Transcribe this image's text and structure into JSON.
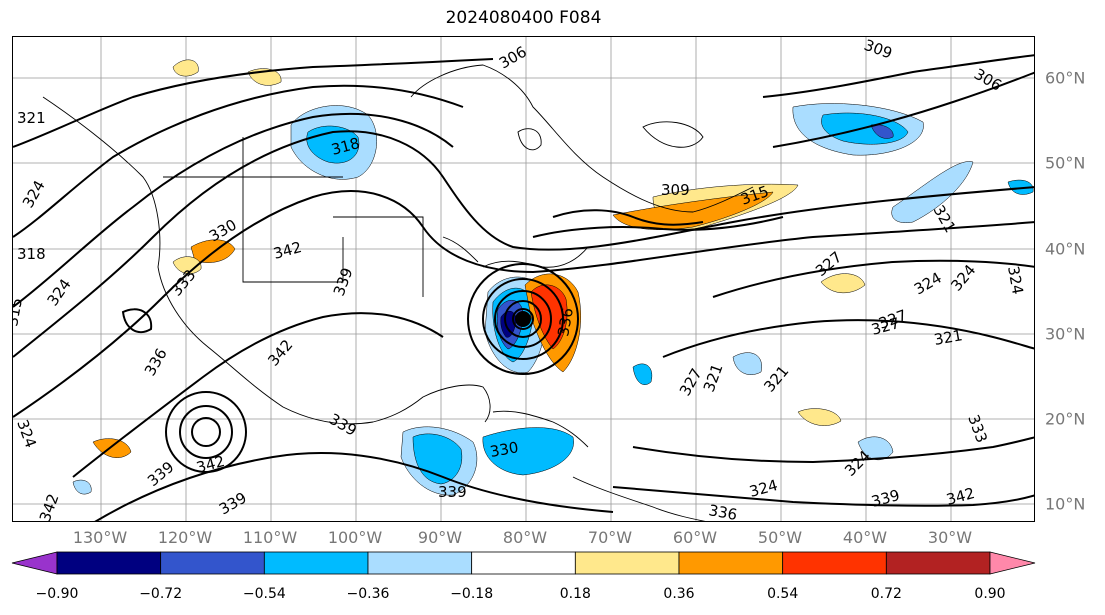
{
  "title": "2024080400 F084",
  "lon_labels": [
    "130°W",
    "120°W",
    "110°W",
    "100°W",
    "90°W",
    "80°W",
    "70°W",
    "60°W",
    "50°W",
    "40°W",
    "30°W"
  ],
  "lat_labels": [
    "60°N",
    "50°N",
    "40°N",
    "30°N",
    "20°N",
    "10°N"
  ],
  "contour_labels": [
    "321",
    "324",
    "318",
    "315",
    "324",
    "330",
    "342",
    "333",
    "336",
    "342",
    "339",
    "339",
    "342",
    "339",
    "324",
    "342",
    "318",
    "306",
    "309",
    "306",
    "309",
    "315",
    "321",
    "327",
    "324",
    "327",
    "321",
    "324",
    "327",
    "321",
    "333",
    "324",
    "339",
    "342",
    "336",
    "324",
    "330",
    "339",
    "339",
    "336",
    "327",
    "321",
    "324"
  ],
  "colorbar": {
    "ticks": [
      "−0.90",
      "−0.72",
      "−0.54",
      "−0.36",
      "−0.18",
      "0.18",
      "0.36",
      "0.54",
      "0.72",
      "0.90"
    ],
    "colors": [
      "#9933cc",
      "#000080",
      "#3355cc",
      "#00bbff",
      "#aaddff",
      "#ffffff",
      "#ffe88c",
      "#ff9900",
      "#ff3300",
      "#b22222",
      "#ff88aa"
    ],
    "extend": "both"
  },
  "storm_marker_color": "#000000"
}
